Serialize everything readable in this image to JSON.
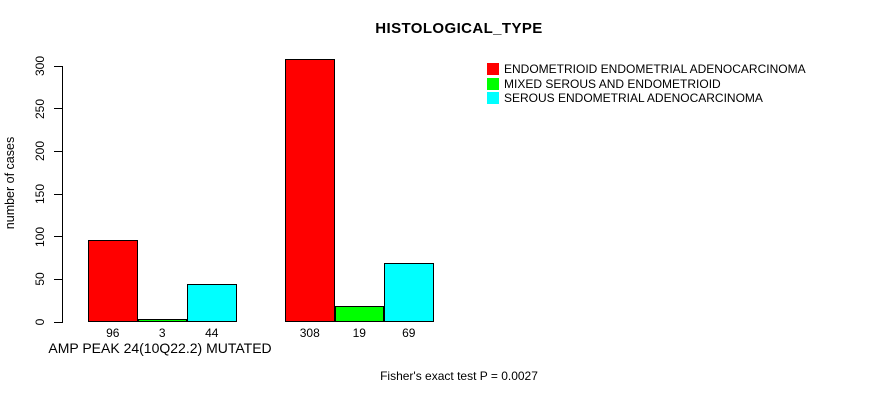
{
  "title": "HISTOLOGICAL_TYPE",
  "footer_note": "Fisher's exact test P = 0.0027",
  "chart_data": {
    "type": "bar",
    "title": "HISTOLOGICAL_TYPE",
    "xlabel": "AMP PEAK 24(10Q22.2) MUTATED",
    "ylabel": "number of cases",
    "ylim": [
      0,
      300
    ],
    "yticks": [
      0,
      50,
      100,
      150,
      200,
      250,
      300
    ],
    "grid": false,
    "legend_position": "top-right",
    "show_value_labels": true,
    "group_labels": [
      "AMP PEAK 24(10Q22.2) MUTATED",
      ""
    ],
    "series": [
      {
        "name": "ENDOMETRIOID ENDOMETRIAL ADENOCARCINOMA",
        "color": "#ff0000",
        "values": [
          96,
          308
        ]
      },
      {
        "name": "MIXED SEROUS AND ENDOMETRIOID",
        "color": "#00ff00",
        "values": [
          3,
          19
        ]
      },
      {
        "name": "SEROUS ENDOMETRIAL ADENOCARCINOMA",
        "color": "#00ffff",
        "values": [
          44,
          69
        ]
      }
    ],
    "annotation": "Fisher's exact test P = 0.0027"
  }
}
